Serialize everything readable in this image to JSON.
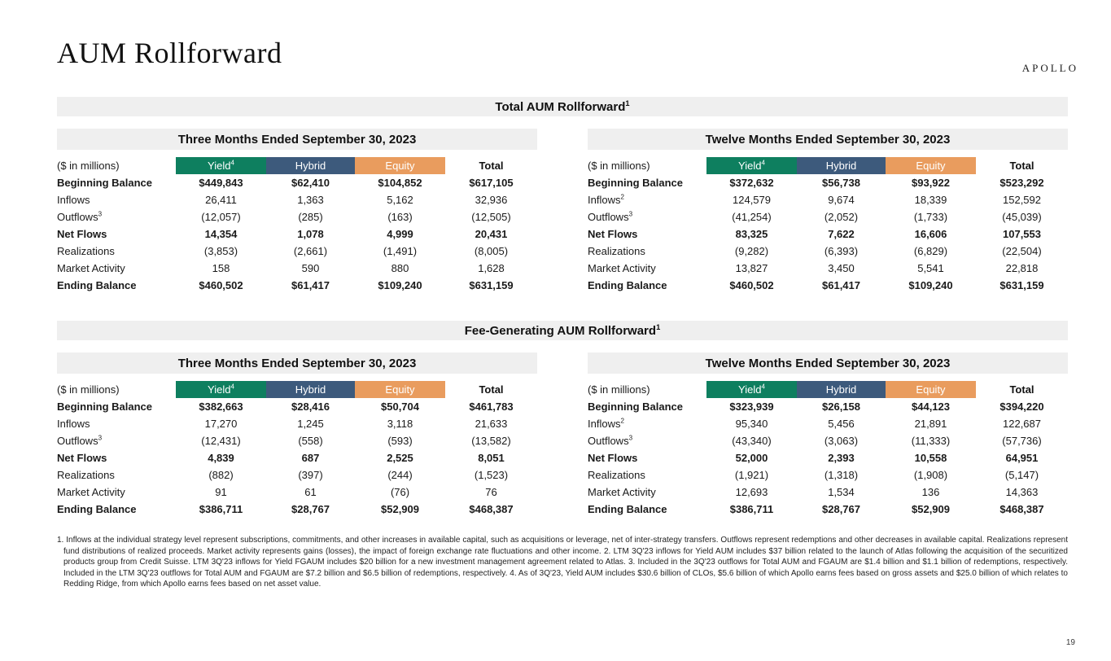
{
  "header": {
    "title": "AUM Rollforward",
    "logo": "APOLLO",
    "page_number": "19"
  },
  "colors": {
    "band_gray": "#efefef",
    "yield_green": "#0e7f5f",
    "hybrid_blue": "#3d5a7c",
    "equity_orange": "#e99c5e"
  },
  "sections": [
    {
      "title": "Total AUM Rollforward",
      "title_sup": "1",
      "tables": [
        {
          "period": "Three Months Ended September 30, 2023",
          "unit_label": "($ in millions)",
          "columns": [
            {
              "label": "Yield",
              "sup": "4",
              "bg": "#0e7f5f",
              "fg": "#ffffff"
            },
            {
              "label": "Hybrid",
              "bg": "#3d5a7c",
              "fg": "#ffffff"
            },
            {
              "label": "Equity",
              "bg": "#e99c5e",
              "fg": "#ffffff"
            },
            {
              "label": "Total"
            }
          ],
          "rows": [
            {
              "label": "Beginning Balance",
              "bold": true,
              "values": [
                "$449,843",
                "$62,410",
                "$104,852",
                "$617,105"
              ]
            },
            {
              "label": "Inflows",
              "values": [
                "26,411",
                "1,363",
                "5,162",
                "32,936"
              ]
            },
            {
              "label": "Outflows",
              "sup": "3",
              "values": [
                "(12,057)",
                "(285)",
                "(163)",
                "(12,505)"
              ]
            },
            {
              "label": "Net Flows",
              "bold": true,
              "values": [
                "14,354",
                "1,078",
                "4,999",
                "20,431"
              ]
            },
            {
              "label": "Realizations",
              "values": [
                "(3,853)",
                "(2,661)",
                "(1,491)",
                "(8,005)"
              ]
            },
            {
              "label": "Market Activity",
              "values": [
                "158",
                "590",
                "880",
                "1,628"
              ]
            },
            {
              "label": "Ending Balance",
              "bold": true,
              "values": [
                "$460,502",
                "$61,417",
                "$109,240",
                "$631,159"
              ]
            }
          ]
        },
        {
          "period": "Twelve Months Ended September 30, 2023",
          "unit_label": "($ in millions)",
          "columns": [
            {
              "label": "Yield",
              "sup": "4",
              "bg": "#0e7f5f",
              "fg": "#ffffff"
            },
            {
              "label": "Hybrid",
              "bg": "#3d5a7c",
              "fg": "#ffffff"
            },
            {
              "label": "Equity",
              "bg": "#e99c5e",
              "fg": "#ffffff"
            },
            {
              "label": "Total"
            }
          ],
          "rows": [
            {
              "label": "Beginning Balance",
              "bold": true,
              "values": [
                "$372,632",
                "$56,738",
                "$93,922",
                "$523,292"
              ]
            },
            {
              "label": "Inflows",
              "sup": "2",
              "values": [
                "124,579",
                "9,674",
                "18,339",
                "152,592"
              ]
            },
            {
              "label": "Outflows",
              "sup": "3",
              "values": [
                "(41,254)",
                "(2,052)",
                "(1,733)",
                "(45,039)"
              ]
            },
            {
              "label": "Net Flows",
              "bold": true,
              "values": [
                "83,325",
                "7,622",
                "16,606",
                "107,553"
              ]
            },
            {
              "label": "Realizations",
              "values": [
                "(9,282)",
                "(6,393)",
                "(6,829)",
                "(22,504)"
              ]
            },
            {
              "label": "Market Activity",
              "values": [
                "13,827",
                "3,450",
                "5,541",
                "22,818"
              ]
            },
            {
              "label": "Ending Balance",
              "bold": true,
              "values": [
                "$460,502",
                "$61,417",
                "$109,240",
                "$631,159"
              ]
            }
          ]
        }
      ]
    },
    {
      "title": "Fee-Generating AUM Rollforward",
      "title_sup": "1",
      "tables": [
        {
          "period": "Three Months Ended September 30, 2023",
          "unit_label": "($ in millions)",
          "columns": [
            {
              "label": "Yield",
              "sup": "4",
              "bg": "#0e7f5f",
              "fg": "#ffffff"
            },
            {
              "label": "Hybrid",
              "bg": "#3d5a7c",
              "fg": "#ffffff"
            },
            {
              "label": "Equity",
              "bg": "#e99c5e",
              "fg": "#ffffff"
            },
            {
              "label": "Total"
            }
          ],
          "rows": [
            {
              "label": "Beginning Balance",
              "bold": true,
              "values": [
                "$382,663",
                "$28,416",
                "$50,704",
                "$461,783"
              ]
            },
            {
              "label": "Inflows",
              "values": [
                "17,270",
                "1,245",
                "3,118",
                "21,633"
              ]
            },
            {
              "label": "Outflows",
              "sup": "3",
              "values": [
                "(12,431)",
                "(558)",
                "(593)",
                "(13,582)"
              ]
            },
            {
              "label": "Net Flows",
              "bold": true,
              "values": [
                "4,839",
                "687",
                "2,525",
                "8,051"
              ]
            },
            {
              "label": "Realizations",
              "values": [
                "(882)",
                "(397)",
                "(244)",
                "(1,523)"
              ]
            },
            {
              "label": "Market Activity",
              "values": [
                "91",
                "61",
                "(76)",
                "76"
              ]
            },
            {
              "label": "Ending Balance",
              "bold": true,
              "values": [
                "$386,711",
                "$28,767",
                "$52,909",
                "$468,387"
              ]
            }
          ]
        },
        {
          "period": "Twelve Months Ended September 30, 2023",
          "unit_label": "($ in millions)",
          "columns": [
            {
              "label": "Yield",
              "sup": "4",
              "bg": "#0e7f5f",
              "fg": "#ffffff"
            },
            {
              "label": "Hybrid",
              "bg": "#3d5a7c",
              "fg": "#ffffff"
            },
            {
              "label": "Equity",
              "bg": "#e99c5e",
              "fg": "#ffffff"
            },
            {
              "label": "Total"
            }
          ],
          "rows": [
            {
              "label": "Beginning Balance",
              "bold": true,
              "values": [
                "$323,939",
                "$26,158",
                "$44,123",
                "$394,220"
              ]
            },
            {
              "label": "Inflows",
              "sup": "2",
              "values": [
                "95,340",
                "5,456",
                "21,891",
                "122,687"
              ]
            },
            {
              "label": "Outflows",
              "sup": "3",
              "values": [
                "(43,340)",
                "(3,063)",
                "(11,333)",
                "(57,736)"
              ]
            },
            {
              "label": "Net Flows",
              "bold": true,
              "values": [
                "52,000",
                "2,393",
                "10,558",
                "64,951"
              ]
            },
            {
              "label": "Realizations",
              "values": [
                "(1,921)",
                "(1,318)",
                "(1,908)",
                "(5,147)"
              ]
            },
            {
              "label": "Market Activity",
              "values": [
                "12,693",
                "1,534",
                "136",
                "14,363"
              ]
            },
            {
              "label": "Ending Balance",
              "bold": true,
              "values": [
                "$386,711",
                "$28,767",
                "$52,909",
                "$468,387"
              ]
            }
          ]
        }
      ]
    }
  ],
  "footnotes": "1. Inflows at the individual strategy level represent subscriptions, commitments, and other increases in available capital, such as acquisitions or leverage, net of inter-strategy transfers. Outflows represent redemptions and other decreases in available capital. Realizations represent fund distributions of realized proceeds. Market activity represents gains (losses), the impact of foreign exchange rate fluctuations and other income. 2. LTM 3Q'23 inflows for Yield AUM includes $37 billion related to the launch of Atlas following the acquisition of the securitized products group from Credit Suisse. LTM 3Q'23 inflows for Yield FGAUM includes $20 billion for a new investment management agreement related to Atlas. 3. Included in the 3Q'23 outflows for Total AUM and FGAUM are $1.4 billion and $1.1 billion of redemptions, respectively. Included in the LTM 3Q'23 outflows for Total AUM and FGAUM are $7.2 billion and $6.5 billion of redemptions, respectively. 4. As of 3Q'23, Yield AUM includes $30.6 billion of CLOs, $5.6 billion of which Apollo earns fees based on gross assets and $25.0 billion of which relates to Redding Ridge, from which Apollo earns fees based on net asset value."
}
